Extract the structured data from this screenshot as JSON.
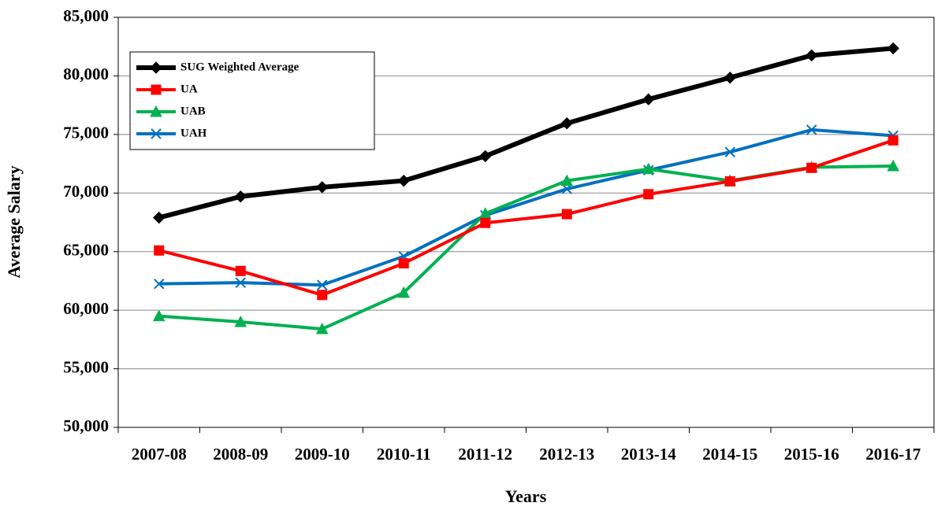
{
  "chart_data": {
    "type": "line",
    "xlabel": "Years",
    "ylabel": "Average Salary",
    "categories": [
      "2007-08",
      "2008-09",
      "2009-10",
      "2010-11",
      "2011-12",
      "2012-13",
      "2013-14",
      "2014-15",
      "2015-16",
      "2016-17"
    ],
    "series": [
      {
        "name": "SUG Weighted Average",
        "color": "#000000",
        "marker": "diamond",
        "values": [
          67900,
          69700,
          70500,
          71050,
          73150,
          75950,
          78000,
          79850,
          81750,
          82350
        ]
      },
      {
        "name": "UA",
        "color": "#ff0000",
        "marker": "square",
        "values": [
          65100,
          63350,
          61300,
          64000,
          67450,
          68200,
          69900,
          71000,
          72150,
          74500
        ]
      },
      {
        "name": "UAB",
        "color": "#00b050",
        "marker": "triangle",
        "values": [
          59500,
          59000,
          58400,
          61500,
          68250,
          71050,
          72050,
          71050,
          72200,
          72300
        ]
      },
      {
        "name": "UAH",
        "color": "#0070c0",
        "marker": "x",
        "values": [
          62250,
          62350,
          62150,
          64600,
          68100,
          70350,
          71950,
          73500,
          75400,
          74900
        ]
      }
    ],
    "ylim": [
      50000,
      85000
    ],
    "yticks": [
      {
        "value": 50000,
        "label": "50,000"
      },
      {
        "value": 55000,
        "label": "55,000"
      },
      {
        "value": 60000,
        "label": "60,000"
      },
      {
        "value": 65000,
        "label": "65,000"
      },
      {
        "value": 70000,
        "label": "70,000"
      },
      {
        "value": 75000,
        "label": "75,000"
      },
      {
        "value": 80000,
        "label": "80,000"
      },
      {
        "value": 85000,
        "label": "85,000"
      }
    ],
    "grid": true,
    "legend": "upper left"
  }
}
